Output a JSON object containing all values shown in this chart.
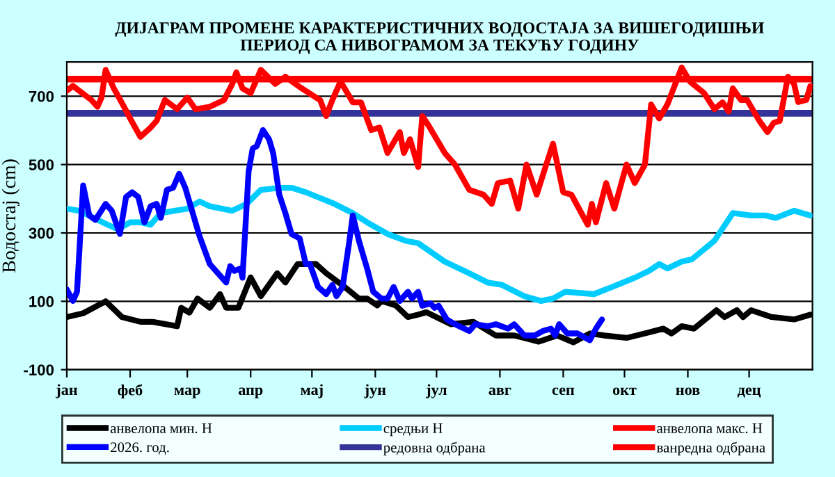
{
  "chart_data": {
    "type": "line",
    "title": "ДИЈАГРАМ ПРОМЕНЕ КАРАКТЕРИСТИЧНИХ ВОДОСТАЈА ЗА ВИШЕГОДИШЊИ\nПЕРИОД СА НИВОГРАМОМ ЗА ТЕКУЋУ ГОДИНУ",
    "ylabel": "Водостај (cm)",
    "categories": [
      "јан",
      null,
      null,
      null,
      null,
      null,
      null,
      null,
      null,
      null,
      null,
      null,
      null,
      null,
      null,
      null,
      null,
      null,
      null,
      null,
      null,
      null,
      null,
      null,
      null,
      null,
      null,
      null,
      null,
      null,
      null,
      "феб",
      null,
      null,
      null,
      null,
      null,
      null,
      null,
      null,
      null,
      null,
      null,
      null,
      null,
      null,
      null,
      null,
      null,
      null,
      null,
      null,
      null,
      null,
      null,
      null,
      null,
      null,
      null,
      "мар",
      null,
      null,
      null,
      null,
      null,
      null,
      null,
      null,
      null,
      null,
      null,
      null,
      null,
      null,
      null,
      null,
      null,
      null,
      null,
      null,
      null,
      null,
      null,
      null,
      null,
      null,
      null,
      null,
      null,
      null,
      "апр",
      null,
      null,
      null,
      null,
      null,
      null,
      null,
      null,
      null,
      null,
      null,
      null,
      null,
      null,
      null,
      null,
      null,
      null,
      null,
      null,
      null,
      null,
      null,
      null,
      null,
      null,
      null,
      null,
      null,
      "мај",
      null,
      null,
      null,
      null,
      null,
      null,
      null,
      null,
      null,
      null,
      null,
      null,
      null,
      null,
      null,
      null,
      null,
      null,
      null,
      null,
      null,
      null,
      null,
      null,
      null,
      null,
      null,
      null,
      null,
      null,
      "јун",
      null,
      null,
      null,
      null,
      null,
      null,
      null,
      null,
      null,
      null,
      null,
      null,
      null,
      null,
      null,
      null,
      null,
      null,
      null,
      null,
      null,
      null,
      null,
      null,
      null,
      null,
      null,
      null,
      null,
      "јул",
      null,
      null,
      null,
      null,
      null,
      null,
      null,
      null,
      null,
      null,
      null,
      null,
      null,
      null,
      null,
      null,
      null,
      null,
      null,
      null,
      null,
      null,
      null,
      null,
      null,
      null,
      null,
      null,
      null,
      null,
      "авг",
      null,
      null,
      null,
      null,
      null,
      null,
      null,
      null,
      null,
      null,
      null,
      null,
      null,
      null,
      null,
      null,
      null,
      null,
      null,
      null,
      null,
      null,
      null,
      null,
      null,
      null,
      null,
      null,
      null,
      null,
      "сеп",
      null,
      null,
      null,
      null,
      null,
      null,
      null,
      null,
      null,
      null,
      null,
      null,
      null,
      null,
      null,
      null,
      null,
      null,
      null,
      null,
      null,
      null,
      null,
      null,
      null,
      null,
      null,
      null,
      null,
      "окт",
      null,
      null,
      null,
      null,
      null,
      null,
      null,
      null,
      null,
      null,
      null,
      null,
      null,
      null,
      null,
      null,
      null,
      null,
      null,
      null,
      null,
      null,
      null,
      null,
      null,
      null,
      null,
      null,
      null,
      null,
      "нов",
      null,
      null,
      null,
      null,
      null,
      null,
      null,
      null,
      null,
      null,
      null,
      null,
      null,
      null,
      null,
      null,
      null,
      null,
      null,
      null,
      null,
      null,
      null,
      null,
      null,
      null,
      null,
      null,
      null,
      "дец",
      null,
      null,
      null,
      null,
      null,
      null,
      null,
      null,
      null,
      null,
      null,
      null,
      null,
      null,
      null,
      null,
      null,
      null,
      null,
      null,
      null,
      null,
      null,
      null,
      null,
      null,
      null,
      null,
      null,
      null
    ],
    "ylim": [
      -100,
      800
    ],
    "yticks": [
      -100,
      100,
      300,
      500,
      700
    ],
    "grid": "y",
    "legend": "bottom",
    "marker": "none",
    "line_style": "solid",
    "series": [
      {
        "name": "анвелопа мин. Н",
        "color": "#000000",
        "values": [
          54,
          null,
          null,
          null,
          null,
          null,
          null,
          null,
          65,
          null,
          null,
          null,
          null,
          null,
          null,
          null,
          null,
          null,
          null,
          100,
          null,
          null,
          null,
          null,
          null,
          null,
          null,
          54,
          null,
          null,
          null,
          null,
          null,
          null,
          null,
          null,
          40,
          null,
          null,
          null,
          null,
          null,
          40,
          null,
          null,
          null,
          null,
          null,
          null,
          null,
          null,
          null,
          null,
          null,
          27,
          null,
          81,
          null,
          null,
          null,
          67,
          null,
          null,
          null,
          108,
          null,
          null,
          null,
          null,
          null,
          81,
          null,
          null,
          null,
          null,
          121,
          null,
          null,
          81,
          null,
          null,
          null,
          null,
          null,
          81,
          null,
          null,
          null,
          null,
          null,
          170,
          null,
          null,
          null,
          null,
          115,
          null,
          null,
          null,
          null,
          null,
          null,
          null,
          182,
          null,
          null,
          null,
          155,
          null,
          null,
          null,
          null,
          null,
          209,
          null,
          null,
          null,
          null,
          null,
          null,
          null,
          null,
          209,
          null,
          null,
          null,
          null,
          182,
          null,
          null,
          null,
          null,
          null,
          null,
          null,
          null,
          142,
          null,
          null,
          null,
          null,
          null,
          null,
          108,
          null,
          null,
          null,
          108,
          null,
          null,
          null,
          null,
          88,
          null,
          101,
          null,
          null,
          null,
          null,
          null,
          null,
          88,
          null,
          null,
          null,
          null,
          null,
          54,
          null,
          null,
          null,
          null,
          61,
          null,
          null,
          null,
          68,
          null,
          null,
          null,
          null,
          null,
          null,
          null,
          null,
          null,
          null,
          null,
          33,
          null,
          null,
          null,
          null,
          null,
          null,
          null,
          null,
          null,
          null,
          40,
          null,
          null,
          null,
          null,
          null,
          null,
          null,
          null,
          null,
          null,
          0,
          null,
          null,
          null,
          null,
          null,
          null,
          null,
          null,
          0,
          null,
          null,
          null,
          null,
          null,
          null,
          null,
          null,
          null,
          null,
          null,
          -18,
          null,
          null,
          null,
          null,
          null,
          null,
          null,
          null,
          0,
          null,
          null,
          null,
          null,
          null,
          null,
          null,
          -20,
          null,
          null,
          null,
          null,
          null,
          null,
          null,
          6,
          null,
          null,
          null,
          null,
          null,
          null,
          0,
          null,
          null,
          null,
          null,
          null,
          null,
          null,
          null,
          null,
          null,
          -7,
          null,
          null,
          null,
          null,
          null,
          null,
          null,
          null,
          6,
          null,
          null,
          null,
          null,
          null,
          null,
          null,
          null,
          20,
          null,
          null,
          null,
          6,
          null,
          null,
          null,
          null,
          27,
          null,
          null,
          null,
          null,
          null,
          20,
          null,
          null,
          null,
          null,
          null,
          null,
          null,
          null,
          null,
          null,
          74,
          null,
          null,
          null,
          54,
          null,
          null,
          null,
          null,
          null,
          74,
          null,
          null,
          54,
          null,
          null,
          null,
          74,
          null,
          null,
          null,
          null,
          null,
          null,
          null,
          null,
          null,
          54,
          null,
          null,
          null,
          null,
          null,
          null,
          null,
          null,
          null,
          null,
          47,
          null,
          null,
          null,
          null,
          null,
          null,
          null,
          61
        ]
      },
      {
        "name": "средњи Н",
        "color": "#00ccff",
        "values": [
          371,
          null,
          null,
          null,
          null,
          null,
          365,
          null,
          null,
          null,
          null,
          null,
          null,
          null,
          null,
          null,
          null,
          null,
          null,
          null,
          324,
          null,
          null,
          null,
          null,
          311,
          null,
          null,
          null,
          null,
          null,
          331,
          null,
          null,
          null,
          null,
          331,
          null,
          null,
          null,
          null,
          324,
          null,
          null,
          null,
          null,
          358,
          null,
          null,
          null,
          null,
          null,
          null,
          null,
          null,
          null,
          null,
          null,
          null,
          371,
          null,
          null,
          null,
          null,
          null,
          392,
          null,
          null,
          null,
          null,
          378,
          null,
          null,
          null,
          null,
          null,
          null,
          null,
          null,
          null,
          null,
          365,
          null,
          null,
          null,
          null,
          null,
          null,
          385,
          null,
          null,
          null,
          null,
          null,
          null,
          426,
          null,
          null,
          null,
          null,
          null,
          null,
          null,
          null,
          432,
          null,
          null,
          null,
          null,
          null,
          432,
          null,
          null,
          null,
          null,
          null,
          null,
          419,
          null,
          null,
          null,
          null,
          null,
          null,
          null,
          null,
          null,
          null,
          null,
          null,
          null,
          385,
          null,
          null,
          null,
          null,
          null,
          null,
          null,
          null,
          358,
          null,
          null,
          null,
          null,
          null,
          null,
          331,
          null,
          null,
          null,
          null,
          null,
          null,
          null,
          null,
          null,
          297,
          null,
          null,
          null,
          null,
          null,
          null,
          null,
          null,
          277,
          null,
          null,
          null,
          null,
          null,
          270,
          null,
          null,
          null,
          null,
          null,
          null,
          null,
          null,
          null,
          null,
          null,
          null,
          216,
          null,
          null,
          null,
          null,
          null,
          null,
          null,
          null,
          null,
          null,
          null,
          182,
          null,
          null,
          null,
          null,
          null,
          null,
          null,
          null,
          155,
          null,
          null,
          null,
          null,
          null,
          null,
          148,
          null,
          null,
          null,
          null,
          null,
          null,
          null,
          null,
          null,
          null,
          115,
          null,
          null,
          null,
          null,
          null,
          null,
          null,
          101,
          null,
          null,
          null,
          null,
          null,
          108,
          null,
          null,
          null,
          null,
          null,
          128,
          null,
          null,
          null,
          null,
          null,
          null,
          null,
          null,
          null,
          null,
          null,
          null,
          null,
          121,
          null,
          null,
          null,
          null,
          null,
          null,
          null,
          null,
          142,
          null,
          null,
          null,
          null,
          null,
          null,
          null,
          null,
          null,
          null,
          169,
          null,
          null,
          null,
          null,
          null,
          null,
          189,
          null,
          null,
          null,
          null,
          209,
          null,
          null,
          null,
          196,
          null,
          null,
          null,
          null,
          null,
          null,
          216,
          null,
          null,
          null,
          null,
          223,
          null,
          null,
          null,
          null,
          null,
          null,
          null,
          null,
          null,
          null,
          277,
          null,
          null,
          null,
          null,
          null,
          null,
          null,
          null,
          358,
          null,
          null,
          null,
          null,
          null,
          null,
          null,
          null,
          351,
          null,
          null,
          null,
          null,
          null,
          null,
          351,
          null,
          null,
          null,
          null,
          344,
          null,
          null,
          null,
          null,
          null,
          null,
          null,
          null,
          365,
          null,
          null,
          null,
          null,
          null,
          null,
          null,
          351
        ]
      },
      {
        "name": "анвелопа макс. Н",
        "color": "#ff0000",
        "values": [
          716,
          null,
          null,
          730,
          null,
          null,
          null,
          null,
          null,
          null,
          null,
          null,
          689,
          null,
          null,
          669,
          null,
          696,
          null,
          777,
          null,
          null,
          null,
          723,
          null,
          null,
          null,
          null,
          669,
          null,
          null,
          635,
          null,
          null,
          null,
          null,
          581,
          null,
          null,
          null,
          null,
          608,
          null,
          null,
          628,
          null,
          null,
          null,
          689,
          null,
          null,
          null,
          null,
          null,
          662,
          null,
          null,
          null,
          null,
          696,
          null,
          null,
          null,
          662,
          null,
          null,
          null,
          null,
          null,
          null,
          669,
          null,
          null,
          null,
          null,
          null,
          null,
          689,
          null,
          null,
          null,
          736,
          null,
          770,
          null,
          null,
          723,
          null,
          null,
          null,
          709,
          null,
          null,
          null,
          null,
          777,
          null,
          null,
          null,
          null,
          null,
          null,
          736,
          null,
          null,
          null,
          null,
          757,
          null,
          null,
          null,
          null,
          null,
          null,
          null,
          723,
          null,
          null,
          null,
          null,
          null,
          null,
          696,
          null,
          689,
          null,
          null,
          642,
          null,
          null,
          689,
          null,
          null,
          null,
          743,
          null,
          null,
          null,
          null,
          null,
          682,
          null,
          null,
          null,
          682,
          null,
          null,
          null,
          null,
          601,
          null,
          null,
          null,
          608,
          null,
          null,
          null,
          534,
          null,
          null,
          null,
          null,
          null,
          595,
          null,
          534,
          null,
          null,
          574,
          null,
          null,
          null,
          493,
          null,
          642,
          null,
          null,
          615,
          null,
          null,
          null,
          null,
          null,
          null,
          null,
          534,
          null,
          null,
          null,
          null,
          500,
          null,
          null,
          null,
          null,
          null,
          null,
          426,
          null,
          null,
          null,
          null,
          null,
          null,
          412,
          null,
          null,
          null,
          385,
          null,
          null,
          446,
          null,
          null,
          null,
          null,
          null,
          453,
          null,
          null,
          null,
          371,
          null,
          null,
          null,
          500,
          null,
          null,
          null,
          null,
          412,
          null,
          null,
          null,
          487,
          null,
          null,
          null,
          561,
          null,
          null,
          null,
          null,
          419,
          null,
          null,
          null,
          412,
          null,
          null,
          null,
          null,
          null,
          null,
          null,
          324,
          null,
          385,
          null,
          331,
          null,
          null,
          null,
          null,
          446,
          null,
          null,
          null,
          371,
          null,
          null,
          null,
          null,
          null,
          500,
          null,
          null,
          null,
          446,
          null,
          null,
          null,
          null,
          500,
          null,
          null,
          676,
          null,
          null,
          null,
          635,
          null,
          null,
          null,
          676,
          null,
          null,
          null,
          null,
          null,
          null,
          784,
          null,
          null,
          null,
          743,
          null,
          null,
          null,
          null,
          null,
          null,
          709,
          null,
          null,
          null,
          null,
          662,
          null,
          null,
          null,
          682,
          null,
          null,
          655,
          null,
          723,
          null,
          null,
          null,
          689,
          null,
          null,
          689,
          null,
          null,
          null,
          null,
          null,
          628,
          null,
          null,
          null,
          595,
          null,
          null,
          622,
          null,
          null,
          628,
          null,
          null,
          null,
          757,
          null,
          null,
          736,
          null,
          683,
          null,
          null,
          null,
          689,
          null,
          730
        ]
      },
      {
        "name": "2026. год.",
        "color": "#0000ff",
        "values": [
          135,
          null,
          null,
          101,
          null,
          128,
          null,
          null,
          439,
          null,
          null,
          351,
          null,
          null,
          338,
          null,
          null,
          null,
          null,
          385,
          null,
          null,
          365,
          null,
          null,
          null,
          297,
          null,
          null,
          405,
          null,
          null,
          419,
          null,
          null,
          405,
          null,
          null,
          331,
          null,
          null,
          378,
          null,
          null,
          385,
          null,
          344,
          null,
          null,
          426,
          null,
          null,
          432,
          null,
          null,
          473,
          null,
          null,
          432,
          null,
          null,
          null,
          null,
          null,
          null,
          290,
          null,
          null,
          null,
          null,
          209,
          null,
          null,
          null,
          182,
          null,
          null,
          null,
          155,
          null,
          203,
          null,
          189,
          null,
          null,
          196,
          169,
          null,
          null,
          480,
          null,
          547,
          null,
          554,
          null,
          null,
          601,
          null,
          null,
          574,
          null,
          534,
          null,
          null,
          412,
          null,
          null,
          358,
          null,
          null,
          297,
          null,
          null,
          null,
          284,
          null,
          null,
          209,
          null,
          209,
          null,
          null,
          null,
          142,
          null,
          null,
          null,
          121,
          null,
          null,
          148,
          null,
          115,
          null,
          null,
          142,
          null,
          null,
          263,
          null,
          351,
          null,
          null,
          277,
          null,
          null,
          null,
          196,
          null,
          null,
          128,
          null,
          null,
          null,
          108,
          null,
          null,
          108,
          null,
          null,
          142,
          null,
          null,
          101,
          null,
          null,
          null,
          128,
          null,
          108,
          null,
          null,
          128,
          null,
          87,
          null,
          null,
          null,
          94,
          null,
          81,
          null,
          87,
          null,
          null,
          null,
          47,
          null,
          null,
          null,
          33,
          null,
          null,
          null,
          null,
          null,
          null,
          13,
          null,
          null,
          33,
          null,
          null,
          null,
          null,
          null,
          27,
          null,
          null,
          null,
          33,
          null,
          null,
          null,
          null,
          null,
          20,
          null,
          null,
          33,
          null,
          null,
          null,
          null,
          0,
          null,
          null,
          null,
          null,
          0,
          null,
          null,
          null,
          13,
          null,
          null,
          null,
          20,
          null,
          0,
          null,
          33,
          null,
          null,
          null,
          6,
          null,
          null,
          null,
          null,
          6,
          null,
          null,
          null,
          null,
          null,
          -14,
          null,
          null,
          20,
          null,
          null,
          47,
          null,
          null,
          null,
          null,
          null,
          null,
          null,
          null,
          null,
          null,
          null,
          null,
          null,
          null,
          null,
          null,
          null,
          null,
          null,
          null,
          null,
          null,
          null,
          null,
          null,
          null,
          null,
          null,
          null,
          null,
          null,
          null,
          null,
          null,
          null,
          null,
          null,
          null,
          null,
          null,
          null,
          null,
          null,
          null,
          null,
          null,
          null,
          null,
          null,
          null,
          null,
          null,
          null,
          null,
          null,
          null,
          null,
          null,
          null,
          null,
          null,
          null,
          null,
          null,
          null,
          null,
          null,
          null,
          null,
          null,
          null,
          null,
          null,
          null,
          null,
          null,
          null,
          null,
          null,
          null,
          null,
          null,
          null,
          null,
          null,
          null,
          null,
          null,
          null,
          null,
          null,
          null,
          null,
          null,
          null,
          null,
          null,
          null,
          null,
          null,
          null,
          null
        ]
      }
    ],
    "ref_lines": [
      {
        "axis": "y",
        "value": 650,
        "label": "редовна одбрана",
        "color": "#333399",
        "line_style": "solid"
      },
      {
        "axis": "y",
        "value": 750,
        "label": "ванредна одбрана",
        "color": "#ff0000",
        "line_style": "solid"
      }
    ]
  }
}
